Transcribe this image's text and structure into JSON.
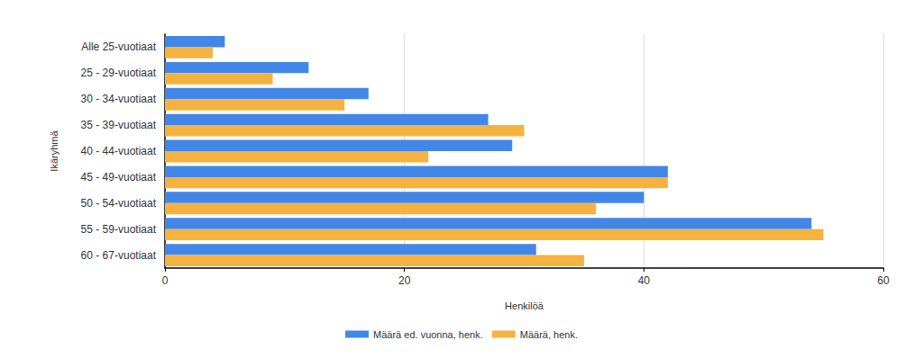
{
  "chart_data": {
    "type": "bar",
    "orientation": "horizontal",
    "categories": [
      "Alle 25-vuotiaat",
      "25 - 29-vuotiaat",
      "30 - 34-vuotiaat",
      "35 - 39-vuotiaat",
      "40 - 44-vuotiaat",
      "45 - 49-vuotiaat",
      "50 - 54-vuotiaat",
      "55 - 59-vuotiaat",
      "60 - 67-vuotiaat"
    ],
    "series": [
      {
        "name": "Määrä ed. vuonna, henk.",
        "color": "#4287e8",
        "values": [
          5,
          12,
          17,
          27,
          29,
          42,
          40,
          54,
          31
        ]
      },
      {
        "name": "Määrä, henk.",
        "color": "#f6b23f",
        "values": [
          4,
          9,
          15,
          30,
          22,
          42,
          36,
          55,
          35
        ]
      }
    ],
    "x_label": "Henkilöä",
    "y_label": "Ikäryhmä",
    "xlim": [
      0,
      60
    ],
    "xticks": [
      0,
      20,
      40,
      60
    ],
    "grid": true,
    "legend": "bottom"
  }
}
